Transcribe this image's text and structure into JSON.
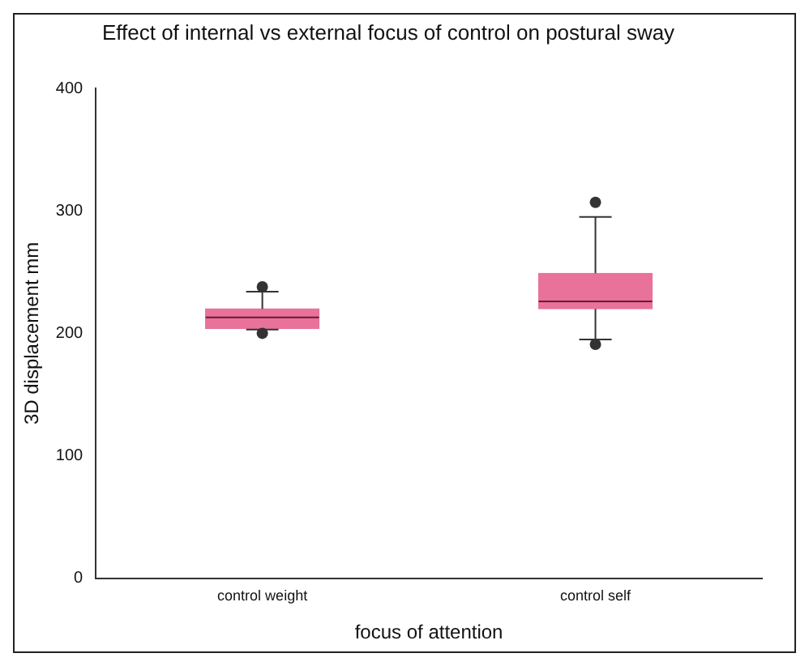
{
  "chart_data": {
    "type": "box",
    "title": "Effect of internal vs external focus of control on postural sway",
    "xlabel": "focus of attention",
    "ylabel": "3D displacement mm",
    "categories": [
      "control weight",
      "control self"
    ],
    "boxes": [
      {
        "low": 203,
        "q1": 204,
        "median": 213,
        "q3": 220,
        "high": 234,
        "outliers": [
          200,
          238
        ]
      },
      {
        "low": 195,
        "q1": 220,
        "median": 226,
        "q3": 249,
        "high": 295,
        "outliers": [
          191,
          307
        ]
      }
    ],
    "color": "#e8729a",
    "ylim": [
      0,
      400
    ],
    "yticks": [
      0,
      100,
      200,
      300,
      400
    ],
    "grid": false,
    "legend": false
  }
}
